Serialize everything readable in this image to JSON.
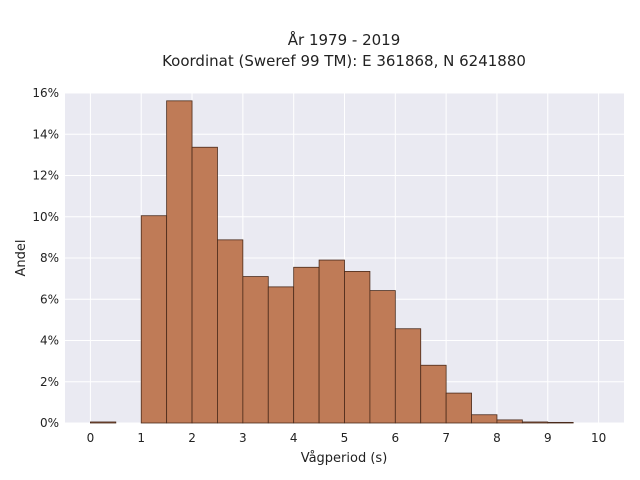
{
  "chart_data": {
    "type": "bar",
    "title_lines": [
      "År 1979 - 2019",
      "Koordinat (Sweref 99 TM): E 361868, N 6241880"
    ],
    "xlabel": "Vågperiod (s)",
    "ylabel": "Andel",
    "xlim": [
      -0.5,
      10.5
    ],
    "ylim": [
      0,
      0.16
    ],
    "x_ticks": [
      0,
      1,
      2,
      3,
      4,
      5,
      6,
      7,
      8,
      9,
      10
    ],
    "y_ticks": [
      0,
      0.02,
      0.04,
      0.06,
      0.08,
      0.1,
      0.12,
      0.14,
      0.16
    ],
    "y_tick_labels": [
      "0%",
      "2%",
      "4%",
      "6%",
      "8%",
      "10%",
      "12%",
      "14%",
      "16%"
    ],
    "grid": true,
    "bar_color": "#bf7b57",
    "edge_color": "#4a2a1a",
    "background_color": "#eaeaf2",
    "bins": [
      {
        "from": 0.0,
        "to": 0.5,
        "value": 0.0005
      },
      {
        "from": 0.5,
        "to": 1.0,
        "value": 0.0
      },
      {
        "from": 1.0,
        "to": 1.5,
        "value": 0.1005
      },
      {
        "from": 1.5,
        "to": 2.0,
        "value": 0.1562
      },
      {
        "from": 2.0,
        "to": 2.5,
        "value": 0.1337
      },
      {
        "from": 2.5,
        "to": 3.0,
        "value": 0.0888
      },
      {
        "from": 3.0,
        "to": 3.5,
        "value": 0.071
      },
      {
        "from": 3.5,
        "to": 4.0,
        "value": 0.066
      },
      {
        "from": 4.0,
        "to": 4.5,
        "value": 0.0755
      },
      {
        "from": 4.5,
        "to": 5.0,
        "value": 0.079
      },
      {
        "from": 5.0,
        "to": 5.5,
        "value": 0.0735
      },
      {
        "from": 5.5,
        "to": 6.0,
        "value": 0.0642
      },
      {
        "from": 6.0,
        "to": 6.5,
        "value": 0.0457
      },
      {
        "from": 6.5,
        "to": 7.0,
        "value": 0.028
      },
      {
        "from": 7.0,
        "to": 7.5,
        "value": 0.0145
      },
      {
        "from": 7.5,
        "to": 8.0,
        "value": 0.004
      },
      {
        "from": 8.0,
        "to": 8.5,
        "value": 0.0015
      },
      {
        "from": 8.5,
        "to": 9.0,
        "value": 0.0005
      },
      {
        "from": 9.0,
        "to": 9.5,
        "value": 0.0003
      },
      {
        "from": 9.5,
        "to": 10.0,
        "value": 0.0
      }
    ]
  }
}
